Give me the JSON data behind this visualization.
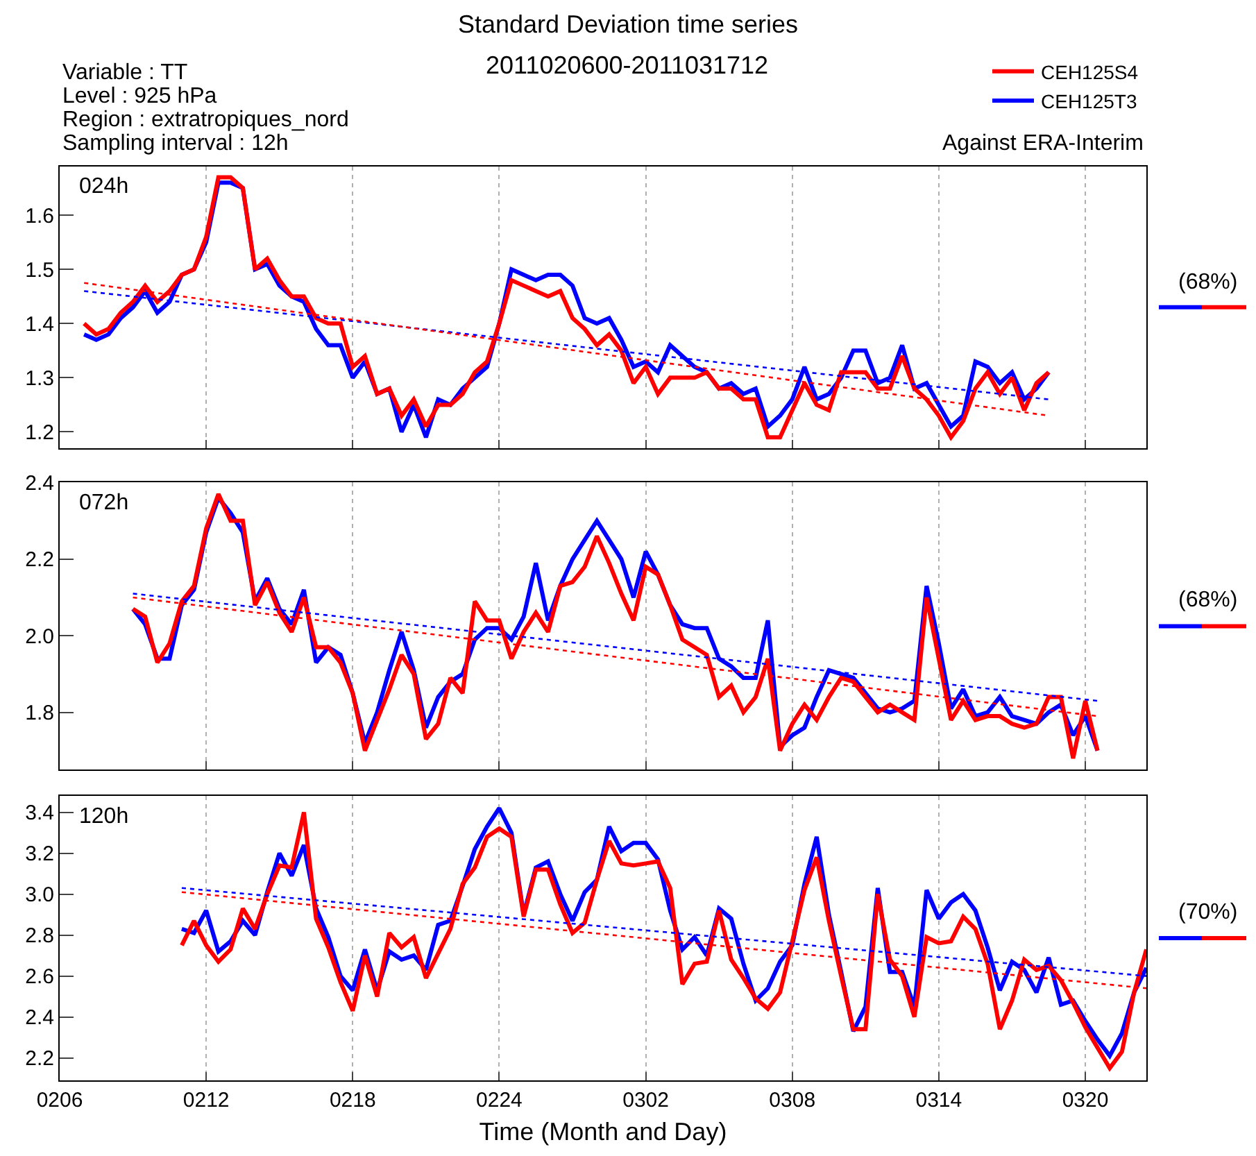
{
  "chart_data": [
    {
      "type": "line",
      "title": "Standard Deviation time series",
      "subtitle": "2011020600-2011031712",
      "legend": "top right",
      "grid": "x",
      "tick_labels": "y",
      "annotations": [
        "024h",
        "(68%)",
        "Variable : TT",
        "Level : 925 hPa",
        "Region : extratropiques_nord",
        "Sampling interval : 12h",
        "Against ERA-Interim"
      ],
      "xlim": [
        "2011-02-06T00:00",
        "2011-03-22T12:00"
      ],
      "xticks": [
        {
          "value": "2011-02-06",
          "label": null
        },
        {
          "value": "2011-02-12",
          "label": null
        },
        {
          "value": "2011-02-18",
          "label": null
        },
        {
          "value": "2011-02-24",
          "label": null
        },
        {
          "value": "2011-03-02",
          "label": null
        },
        {
          "value": "2011-03-08",
          "label": null
        },
        {
          "value": "2011-03-14",
          "label": null
        },
        {
          "value": "2011-03-20",
          "label": null
        }
      ],
      "ylim": [
        1.17,
        1.69
      ],
      "yticks": [
        1.2,
        1.3,
        1.4,
        1.5,
        1.6
      ],
      "x": [
        "2011-02-07T00:00",
        "2011-02-07T12:00",
        "2011-02-08T00:00",
        "2011-02-08T12:00",
        "2011-02-09T00:00",
        "2011-02-09T12:00",
        "2011-02-10T00:00",
        "2011-02-10T12:00",
        "2011-02-11T00:00",
        "2011-02-11T12:00",
        "2011-02-12T00:00",
        "2011-02-12T12:00",
        "2011-02-13T00:00",
        "2011-02-13T12:00",
        "2011-02-14T00:00",
        "2011-02-14T12:00",
        "2011-02-15T00:00",
        "2011-02-15T12:00",
        "2011-02-16T00:00",
        "2011-02-16T12:00",
        "2011-02-17T00:00",
        "2011-02-17T12:00",
        "2011-02-18T00:00",
        "2011-02-18T12:00",
        "2011-02-19T00:00",
        "2011-02-19T12:00",
        "2011-02-20T00:00",
        "2011-02-20T12:00",
        "2011-02-21T00:00",
        "2011-02-21T12:00",
        "2011-02-22T00:00",
        "2011-02-22T12:00",
        "2011-02-23T00:00",
        "2011-02-23T12:00",
        "2011-02-24T00:00",
        "2011-02-24T12:00",
        "2011-02-25T00:00",
        "2011-02-25T12:00",
        "2011-02-26T00:00",
        "2011-02-26T12:00",
        "2011-02-27T00:00",
        "2011-02-27T12:00",
        "2011-02-28T00:00",
        "2011-02-28T12:00",
        "2011-03-01T00:00",
        "2011-03-01T12:00",
        "2011-03-02T00:00",
        "2011-03-02T12:00",
        "2011-03-03T00:00",
        "2011-03-03T12:00",
        "2011-03-04T00:00",
        "2011-03-04T12:00",
        "2011-03-05T00:00",
        "2011-03-05T12:00",
        "2011-03-06T00:00",
        "2011-03-06T12:00",
        "2011-03-07T00:00",
        "2011-03-07T12:00",
        "2011-03-08T00:00",
        "2011-03-08T12:00",
        "2011-03-09T00:00",
        "2011-03-09T12:00",
        "2011-03-10T00:00",
        "2011-03-10T12:00",
        "2011-03-11T00:00",
        "2011-03-11T12:00",
        "2011-03-12T00:00",
        "2011-03-12T12:00",
        "2011-03-13T00:00",
        "2011-03-13T12:00",
        "2011-03-14T00:00",
        "2011-03-14T12:00",
        "2011-03-15T00:00",
        "2011-03-15T12:00",
        "2011-03-16T00:00",
        "2011-03-16T12:00",
        "2011-03-17T00:00",
        "2011-03-17T12:00",
        "2011-03-18T00:00",
        "2011-03-18T12:00"
      ],
      "series": [
        {
          "name": "CEH125T3",
          "color": "#0000ff",
          "values": [
            1.38,
            1.37,
            1.38,
            1.41,
            1.43,
            1.46,
            1.42,
            1.44,
            1.49,
            1.5,
            1.55,
            1.66,
            1.66,
            1.65,
            1.5,
            1.51,
            1.47,
            1.45,
            1.44,
            1.39,
            1.36,
            1.36,
            1.3,
            1.33,
            1.27,
            1.28,
            1.2,
            1.25,
            1.19,
            1.26,
            1.25,
            1.28,
            1.3,
            1.32,
            1.4,
            1.5,
            1.49,
            1.48,
            1.49,
            1.49,
            1.47,
            1.41,
            1.4,
            1.41,
            1.37,
            1.32,
            1.33,
            1.31,
            1.36,
            1.34,
            1.32,
            1.31,
            1.28,
            1.29,
            1.27,
            1.28,
            1.21,
            1.23,
            1.26,
            1.32,
            1.26,
            1.27,
            1.3,
            1.35,
            1.35,
            1.29,
            1.3,
            1.36,
            1.28,
            1.29,
            1.25,
            1.21,
            1.23,
            1.33,
            1.32,
            1.29,
            1.31,
            1.26,
            1.28,
            1.31
          ]
        },
        {
          "name": "CEH125S4",
          "color": "#ff0000",
          "values": [
            1.4,
            1.38,
            1.39,
            1.42,
            1.44,
            1.47,
            1.44,
            1.46,
            1.49,
            1.5,
            1.56,
            1.67,
            1.67,
            1.65,
            1.5,
            1.52,
            1.48,
            1.45,
            1.45,
            1.41,
            1.4,
            1.4,
            1.32,
            1.34,
            1.27,
            1.28,
            1.23,
            1.26,
            1.21,
            1.25,
            1.25,
            1.27,
            1.31,
            1.33,
            1.4,
            1.48,
            1.47,
            1.46,
            1.45,
            1.46,
            1.41,
            1.39,
            1.36,
            1.38,
            1.35,
            1.29,
            1.32,
            1.27,
            1.3,
            1.3,
            1.3,
            1.31,
            1.28,
            1.28,
            1.26,
            1.26,
            1.19,
            1.19,
            1.24,
            1.29,
            1.25,
            1.24,
            1.31,
            1.31,
            1.31,
            1.28,
            1.28,
            1.34,
            1.28,
            1.26,
            1.23,
            1.19,
            1.22,
            1.28,
            1.31,
            1.27,
            1.3,
            1.24,
            1.29,
            1.31
          ]
        },
        {
          "type": "line",
          "color": "#0000ff",
          "line_style": "dotted",
          "x": [
            "2011-02-07T00:00",
            "2011-03-18T12:00"
          ],
          "values": [
            1.46,
            1.26
          ]
        },
        {
          "type": "line",
          "color": "#ff0000",
          "line_style": "dotted",
          "x": [
            "2011-02-07T00:00",
            "2011-03-18T12:00"
          ],
          "values": [
            1.475,
            1.23
          ]
        }
      ]
    },
    {
      "type": "line",
      "grid": "x",
      "tick_labels": "y",
      "annotations": [
        "072h",
        "(68%)"
      ],
      "xlim": [
        "2011-02-06T00:00",
        "2011-03-22T12:00"
      ],
      "xticks": [
        {
          "value": "2011-02-06",
          "label": null
        },
        {
          "value": "2011-02-12",
          "label": null
        },
        {
          "value": "2011-02-18",
          "label": null
        },
        {
          "value": "2011-02-24",
          "label": null
        },
        {
          "value": "2011-03-02",
          "label": null
        },
        {
          "value": "2011-03-08",
          "label": null
        },
        {
          "value": "2011-03-14",
          "label": null
        },
        {
          "value": "2011-03-20",
          "label": null
        }
      ],
      "ylim": [
        1.65,
        2.4
      ],
      "yticks": [
        1.8,
        {
          "value": 2.0,
          "label": "2.0"
        },
        2.2,
        2.4
      ],
      "x": [
        "2011-02-09T00:00",
        "2011-02-09T12:00",
        "2011-02-10T00:00",
        "2011-02-10T12:00",
        "2011-02-11T00:00",
        "2011-02-11T12:00",
        "2011-02-12T00:00",
        "2011-02-12T12:00",
        "2011-02-13T00:00",
        "2011-02-13T12:00",
        "2011-02-14T00:00",
        "2011-02-14T12:00",
        "2011-02-15T00:00",
        "2011-02-15T12:00",
        "2011-02-16T00:00",
        "2011-02-16T12:00",
        "2011-02-17T00:00",
        "2011-02-17T12:00",
        "2011-02-18T00:00",
        "2011-02-18T12:00",
        "2011-02-19T00:00",
        "2011-02-19T12:00",
        "2011-02-20T00:00",
        "2011-02-20T12:00",
        "2011-02-21T00:00",
        "2011-02-21T12:00",
        "2011-02-22T00:00",
        "2011-02-22T12:00",
        "2011-02-23T00:00",
        "2011-02-23T12:00",
        "2011-02-24T00:00",
        "2011-02-24T12:00",
        "2011-02-25T00:00",
        "2011-02-25T12:00",
        "2011-02-26T00:00",
        "2011-02-26T12:00",
        "2011-02-27T00:00",
        "2011-02-27T12:00",
        "2011-02-28T00:00",
        "2011-02-28T12:00",
        "2011-03-01T00:00",
        "2011-03-01T12:00",
        "2011-03-02T00:00",
        "2011-03-02T12:00",
        "2011-03-03T00:00",
        "2011-03-03T12:00",
        "2011-03-04T00:00",
        "2011-03-04T12:00",
        "2011-03-05T00:00",
        "2011-03-05T12:00",
        "2011-03-06T00:00",
        "2011-03-06T12:00",
        "2011-03-07T00:00",
        "2011-03-07T12:00",
        "2011-03-08T00:00",
        "2011-03-08T12:00",
        "2011-03-09T00:00",
        "2011-03-09T12:00",
        "2011-03-10T00:00",
        "2011-03-10T12:00",
        "2011-03-11T00:00",
        "2011-03-11T12:00",
        "2011-03-12T00:00",
        "2011-03-12T12:00",
        "2011-03-13T00:00",
        "2011-03-13T12:00",
        "2011-03-14T00:00",
        "2011-03-14T12:00",
        "2011-03-15T00:00",
        "2011-03-15T12:00",
        "2011-03-16T00:00",
        "2011-03-16T12:00",
        "2011-03-17T00:00",
        "2011-03-17T12:00",
        "2011-03-18T00:00",
        "2011-03-18T12:00",
        "2011-03-19T00:00",
        "2011-03-19T12:00",
        "2011-03-20T00:00",
        "2011-03-20T12:00"
      ],
      "series": [
        {
          "color": "#0000ff",
          "values": [
            2.07,
            2.03,
            1.94,
            1.94,
            2.08,
            2.12,
            2.27,
            2.36,
            2.32,
            2.27,
            2.09,
            2.15,
            2.07,
            2.03,
            2.12,
            1.93,
            1.97,
            1.95,
            1.85,
            1.72,
            1.8,
            1.91,
            2.01,
            1.91,
            1.76,
            1.84,
            1.88,
            1.9,
            1.99,
            2.02,
            2.02,
            1.99,
            2.05,
            2.19,
            2.04,
            2.13,
            2.2,
            2.25,
            2.3,
            2.25,
            2.2,
            2.1,
            2.22,
            2.16,
            2.08,
            2.03,
            2.02,
            2.02,
            1.94,
            1.92,
            1.89,
            1.89,
            2.04,
            1.71,
            1.74,
            1.76,
            1.84,
            1.91,
            1.9,
            1.89,
            1.85,
            1.81,
            1.8,
            1.81,
            1.83,
            2.13,
            1.98,
            1.81,
            1.86,
            1.79,
            1.8,
            1.84,
            1.79,
            1.78,
            1.77,
            1.8,
            1.82,
            1.74,
            1.79,
            1.7
          ]
        },
        {
          "color": "#ff0000",
          "values": [
            2.07,
            2.05,
            1.93,
            1.98,
            2.09,
            2.13,
            2.28,
            2.37,
            2.3,
            2.3,
            2.08,
            2.14,
            2.06,
            2.01,
            2.1,
            1.97,
            1.97,
            1.93,
            1.85,
            1.7,
            1.78,
            1.86,
            1.95,
            1.9,
            1.73,
            1.77,
            1.89,
            1.85,
            2.09,
            2.04,
            2.04,
            1.94,
            2.01,
            2.06,
            2.01,
            2.13,
            2.14,
            2.18,
            2.26,
            2.19,
            2.11,
            2.04,
            2.18,
            2.16,
            2.08,
            1.99,
            1.97,
            1.95,
            1.84,
            1.87,
            1.8,
            1.84,
            1.94,
            1.7,
            1.77,
            1.82,
            1.78,
            1.84,
            1.89,
            1.88,
            1.84,
            1.8,
            1.82,
            1.8,
            1.78,
            2.1,
            1.94,
            1.78,
            1.83,
            1.78,
            1.79,
            1.79,
            1.77,
            1.76,
            1.77,
            1.84,
            1.84,
            1.68,
            1.83,
            1.7
          ]
        },
        {
          "type": "line",
          "color": "#0000ff",
          "line_style": "dotted",
          "x": [
            "2011-02-09T00:00",
            "2011-03-20T12:00"
          ],
          "values": [
            2.11,
            1.83
          ]
        },
        {
          "type": "line",
          "color": "#ff0000",
          "line_style": "dotted",
          "x": [
            "2011-02-09T00:00",
            "2011-03-20T12:00"
          ],
          "values": [
            2.1,
            1.79
          ]
        }
      ]
    },
    {
      "type": "line",
      "grid": "x",
      "xlabel": "Time (Month and Day)",
      "annotations": [
        "120h",
        "(70%)"
      ],
      "xlim": [
        "2011-02-06T00:00",
        "2011-03-22T12:00"
      ],
      "xticks": [
        {
          "value": "2011-02-06",
          "label": "0206"
        },
        {
          "value": "2011-02-12",
          "label": "0212"
        },
        {
          "value": "2011-02-18",
          "label": "0218"
        },
        {
          "value": "2011-02-24",
          "label": "0224"
        },
        {
          "value": "2011-03-02",
          "label": "0302"
        },
        {
          "value": "2011-03-08",
          "label": "0308"
        },
        {
          "value": "2011-03-14",
          "label": "0314"
        },
        {
          "value": "2011-03-20",
          "label": "0320"
        }
      ],
      "ylim": [
        2.09,
        3.48
      ],
      "yticks": [
        2.2,
        2.4,
        2.6,
        2.8,
        {
          "value": 3.0,
          "label": "3.0"
        },
        3.2,
        3.4
      ],
      "x": [
        "2011-02-11T00:00",
        "2011-02-11T12:00",
        "2011-02-12T00:00",
        "2011-02-12T12:00",
        "2011-02-13T00:00",
        "2011-02-13T12:00",
        "2011-02-14T00:00",
        "2011-02-14T12:00",
        "2011-02-15T00:00",
        "2011-02-15T12:00",
        "2011-02-16T00:00",
        "2011-02-16T12:00",
        "2011-02-17T00:00",
        "2011-02-17T12:00",
        "2011-02-18T00:00",
        "2011-02-18T12:00",
        "2011-02-19T00:00",
        "2011-02-19T12:00",
        "2011-02-20T00:00",
        "2011-02-20T12:00",
        "2011-02-21T00:00",
        "2011-02-21T12:00",
        "2011-02-22T00:00",
        "2011-02-22T12:00",
        "2011-02-23T00:00",
        "2011-02-23T12:00",
        "2011-02-24T00:00",
        "2011-02-24T12:00",
        "2011-02-25T00:00",
        "2011-02-25T12:00",
        "2011-02-26T00:00",
        "2011-02-26T12:00",
        "2011-02-27T00:00",
        "2011-02-27T12:00",
        "2011-02-28T00:00",
        "2011-02-28T12:00",
        "2011-03-01T00:00",
        "2011-03-01T12:00",
        "2011-03-02T00:00",
        "2011-03-02T12:00",
        "2011-03-03T00:00",
        "2011-03-03T12:00",
        "2011-03-04T00:00",
        "2011-03-04T12:00",
        "2011-03-05T00:00",
        "2011-03-05T12:00",
        "2011-03-06T00:00",
        "2011-03-06T12:00",
        "2011-03-07T00:00",
        "2011-03-07T12:00",
        "2011-03-08T00:00",
        "2011-03-08T12:00",
        "2011-03-09T00:00",
        "2011-03-09T12:00",
        "2011-03-10T00:00",
        "2011-03-10T12:00",
        "2011-03-11T00:00",
        "2011-03-11T12:00",
        "2011-03-12T00:00",
        "2011-03-12T12:00",
        "2011-03-13T00:00",
        "2011-03-13T12:00",
        "2011-03-14T00:00",
        "2011-03-14T12:00",
        "2011-03-15T00:00",
        "2011-03-15T12:00",
        "2011-03-16T00:00",
        "2011-03-16T12:00",
        "2011-03-17T00:00",
        "2011-03-17T12:00",
        "2011-03-18T00:00",
        "2011-03-18T12:00",
        "2011-03-19T00:00",
        "2011-03-19T12:00",
        "2011-03-20T00:00",
        "2011-03-20T12:00",
        "2011-03-21T00:00",
        "2011-03-21T12:00",
        "2011-03-22T00:00",
        "2011-03-22T12:00"
      ],
      "series": [
        {
          "color": "#0000ff",
          "values": [
            2.83,
            2.81,
            2.92,
            2.72,
            2.77,
            2.87,
            2.8,
            3.01,
            3.2,
            3.09,
            3.24,
            2.93,
            2.79,
            2.6,
            2.53,
            2.73,
            2.53,
            2.72,
            2.68,
            2.7,
            2.63,
            2.85,
            2.87,
            3.04,
            3.22,
            3.33,
            3.42,
            3.3,
            2.9,
            3.13,
            3.16,
            3.0,
            2.87,
            3.01,
            3.07,
            3.33,
            3.21,
            3.25,
            3.25,
            3.17,
            2.92,
            2.73,
            2.79,
            2.7,
            2.93,
            2.88,
            2.66,
            2.48,
            2.54,
            2.67,
            2.75,
            3.05,
            3.28,
            2.9,
            2.62,
            2.33,
            2.45,
            3.03,
            2.62,
            2.62,
            2.45,
            3.02,
            2.88,
            2.96,
            3.0,
            2.92,
            2.74,
            2.53,
            2.67,
            2.63,
            2.52,
            2.69,
            2.46,
            2.48,
            2.38,
            2.29,
            2.21,
            2.32,
            2.52,
            2.64
          ]
        },
        {
          "color": "#ff0000",
          "values": [
            2.75,
            2.87,
            2.75,
            2.67,
            2.73,
            2.93,
            2.83,
            3.0,
            3.14,
            3.13,
            3.4,
            2.88,
            2.74,
            2.57,
            2.43,
            2.7,
            2.5,
            2.81,
            2.74,
            2.79,
            2.59,
            2.71,
            2.83,
            3.05,
            3.13,
            3.28,
            3.32,
            3.28,
            2.89,
            3.12,
            3.12,
            2.95,
            2.81,
            2.86,
            3.07,
            3.26,
            3.15,
            3.14,
            3.15,
            3.16,
            3.03,
            2.56,
            2.66,
            2.67,
            2.92,
            2.68,
            2.59,
            2.49,
            2.44,
            2.52,
            2.77,
            3.02,
            3.18,
            2.87,
            2.6,
            2.34,
            2.34,
            3.0,
            2.68,
            2.6,
            2.4,
            2.79,
            2.76,
            2.77,
            2.89,
            2.83,
            2.66,
            2.34,
            2.48,
            2.68,
            2.63,
            2.65,
            2.58,
            2.47,
            2.35,
            2.25,
            2.15,
            2.23,
            2.52,
            2.73
          ]
        },
        {
          "type": "line",
          "color": "#0000ff",
          "line_style": "dotted",
          "x": [
            "2011-02-11T00:00",
            "2011-03-22T12:00"
          ],
          "values": [
            3.03,
            2.6
          ]
        },
        {
          "type": "line",
          "color": "#ff0000",
          "line_style": "dotted",
          "x": [
            "2011-02-11T00:00",
            "2011-03-22T12:00"
          ],
          "values": [
            3.01,
            2.54
          ]
        }
      ]
    }
  ]
}
